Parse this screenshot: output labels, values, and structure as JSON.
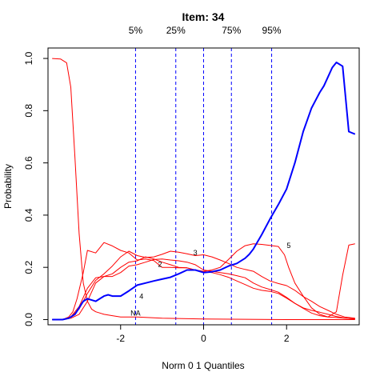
{
  "chart_data": {
    "type": "line",
    "title": "Item:  34",
    "xlabel": "Norm 0 1 Quantiles",
    "ylabel": "Probability",
    "xlim": [
      -3.75,
      3.75
    ],
    "ylim": [
      -0.02,
      1.04
    ],
    "x_ticks": [
      -2,
      0,
      2
    ],
    "x_tick_labels": [
      "-2",
      "0",
      "2"
    ],
    "y_ticks": [
      0.0,
      0.2,
      0.4,
      0.6,
      0.8,
      1.0
    ],
    "y_tick_labels": [
      "0.0",
      "0.2",
      "0.4",
      "0.6",
      "0.8",
      "1.0"
    ],
    "quantiles": [
      {
        "label": "5%",
        "x": -1.64
      },
      {
        "label": "25%",
        "x": -0.67
      },
      {
        "label": "75%",
        "x": 0.67
      },
      {
        "label": "95%",
        "x": 1.64
      }
    ],
    "colors": {
      "option_curves": "#ff0000",
      "key_curve": "#0000ff",
      "quantile_lines": "#0000ff"
    },
    "series": [
      {
        "label": "NA",
        "color": "#ff0000",
        "key": false,
        "label_at": {
          "x": -1.64,
          "y": 0.025
        },
        "x": [
          -3.65,
          -3.45,
          -3.3,
          -3.2,
          -3.1,
          -3.0,
          -2.9,
          -2.8,
          -2.7,
          -2.6,
          -2.4,
          -2.2,
          -2.0,
          -1.6,
          -1.0,
          0.0,
          1.0,
          2.0,
          3.0,
          3.65
        ],
        "y": [
          1.0,
          0.998,
          0.983,
          0.89,
          0.62,
          0.33,
          0.14,
          0.07,
          0.04,
          0.03,
          0.02,
          0.015,
          0.01,
          0.01,
          0.005,
          0.002,
          0.001,
          0.0,
          0.0,
          0.0
        ]
      },
      {
        "label": "2",
        "color": "#ff0000",
        "key": false,
        "label_at": {
          "x": -1.05,
          "y": 0.212
        },
        "x": [
          -3.65,
          -3.4,
          -3.25,
          -3.15,
          -3.05,
          -2.9,
          -2.8,
          -2.6,
          -2.4,
          -2.2,
          -2.0,
          -1.8,
          -1.6,
          -1.4,
          -1.2,
          -1.0,
          -0.8,
          -0.6,
          -0.4,
          -0.2,
          0.0,
          0.2,
          0.4,
          0.6,
          0.8,
          1.0,
          1.2,
          1.4,
          1.6,
          1.8,
          2.0,
          2.2,
          2.4,
          2.6,
          2.8,
          3.0,
          3.2,
          3.4,
          3.65
        ],
        "y": [
          0.0,
          0.0,
          0.01,
          0.03,
          0.08,
          0.18,
          0.265,
          0.255,
          0.295,
          0.282,
          0.265,
          0.255,
          0.228,
          0.232,
          0.226,
          0.2,
          0.2,
          0.198,
          0.198,
          0.19,
          0.184,
          0.18,
          0.172,
          0.162,
          0.148,
          0.134,
          0.12,
          0.112,
          0.108,
          0.1,
          0.082,
          0.062,
          0.043,
          0.025,
          0.015,
          0.01,
          0.008,
          0.005,
          0.003
        ]
      },
      {
        "label": "3",
        "color": "#ff0000",
        "key": false,
        "label_at": {
          "x": -0.2,
          "y": 0.255
        },
        "x": [
          -3.65,
          -3.4,
          -3.2,
          -3.0,
          -2.8,
          -2.6,
          -2.4,
          -2.2,
          -2.0,
          -1.8,
          -1.6,
          -1.4,
          -1.2,
          -1.0,
          -0.8,
          -0.6,
          -0.4,
          -0.2,
          0.0,
          0.2,
          0.4,
          0.6,
          0.8,
          1.0,
          1.2,
          1.4,
          1.6,
          1.8,
          2.0,
          2.2,
          2.4,
          2.6,
          2.8,
          3.0,
          3.2,
          3.4,
          3.65
        ],
        "y": [
          0.0,
          0.0,
          0.01,
          0.04,
          0.1,
          0.15,
          0.175,
          0.205,
          0.24,
          0.262,
          0.245,
          0.238,
          0.24,
          0.25,
          0.262,
          0.258,
          0.252,
          0.245,
          0.248,
          0.24,
          0.228,
          0.215,
          0.2,
          0.192,
          0.185,
          0.165,
          0.148,
          0.138,
          0.13,
          0.112,
          0.088,
          0.07,
          0.05,
          0.035,
          0.02,
          0.01,
          0.005
        ]
      },
      {
        "label": "4",
        "color": "#ff0000",
        "key": false,
        "label_at": {
          "x": -1.5,
          "y": 0.088
        },
        "x": [
          -3.65,
          -3.4,
          -3.2,
          -3.0,
          -2.8,
          -2.6,
          -2.4,
          -2.2,
          -2.0,
          -1.8,
          -1.6,
          -1.4,
          -1.2,
          -1.0,
          -0.8,
          -0.6,
          -0.4,
          -0.2,
          0.0,
          0.2,
          0.4,
          0.6,
          0.8,
          1.0,
          1.2,
          1.4,
          1.6,
          1.8,
          2.0,
          2.2,
          2.4,
          2.6,
          2.8,
          3.0,
          3.2,
          3.4,
          3.65
        ],
        "y": [
          0.0,
          0.0,
          0.01,
          0.05,
          0.12,
          0.16,
          0.165,
          0.165,
          0.18,
          0.205,
          0.21,
          0.22,
          0.23,
          0.232,
          0.228,
          0.225,
          0.22,
          0.21,
          0.19,
          0.185,
          0.18,
          0.175,
          0.168,
          0.16,
          0.14,
          0.125,
          0.115,
          0.105,
          0.085,
          0.062,
          0.045,
          0.035,
          0.028,
          0.02,
          0.012,
          0.006,
          0.002
        ]
      },
      {
        "label": "5",
        "color": "#ff0000",
        "key": false,
        "label_at": {
          "x": 2.05,
          "y": 0.283
        },
        "x": [
          -3.65,
          -3.4,
          -3.2,
          -3.0,
          -2.8,
          -2.6,
          -2.4,
          -2.2,
          -2.0,
          -1.8,
          -1.6,
          -1.4,
          -1.2,
          -1.0,
          -0.8,
          -0.6,
          -0.4,
          -0.2,
          0.0,
          0.2,
          0.4,
          0.6,
          0.8,
          1.0,
          1.2,
          1.4,
          1.6,
          1.8,
          1.95,
          2.05,
          2.2,
          2.4,
          2.6,
          2.8,
          3.0,
          3.2,
          3.35,
          3.5,
          3.65
        ],
        "y": [
          0.0,
          0.0,
          0.005,
          0.02,
          0.07,
          0.14,
          0.165,
          0.175,
          0.2,
          0.22,
          0.225,
          0.24,
          0.232,
          0.22,
          0.21,
          0.2,
          0.198,
          0.19,
          0.185,
          0.19,
          0.2,
          0.23,
          0.262,
          0.283,
          0.29,
          0.288,
          0.284,
          0.28,
          0.248,
          0.2,
          0.14,
          0.09,
          0.045,
          0.02,
          0.01,
          0.03,
          0.17,
          0.285,
          0.29
        ]
      },
      {
        "label": "",
        "color": "#0000ff",
        "key": true,
        "x": [
          -3.65,
          -3.4,
          -3.25,
          -3.1,
          -3.0,
          -2.9,
          -2.8,
          -2.6,
          -2.5,
          -2.4,
          -2.3,
          -2.2,
          -2.0,
          -1.8,
          -1.6,
          -1.4,
          -1.2,
          -1.0,
          -0.8,
          -0.6,
          -0.4,
          -0.2,
          0.0,
          0.2,
          0.4,
          0.6,
          0.8,
          1.0,
          1.1,
          1.2,
          1.4,
          1.6,
          1.8,
          2.0,
          2.2,
          2.4,
          2.6,
          2.8,
          2.9,
          3.0,
          3.1,
          3.2,
          3.35,
          3.5,
          3.65
        ],
        "y": [
          0.0,
          0.0,
          0.005,
          0.02,
          0.045,
          0.07,
          0.08,
          0.07,
          0.08,
          0.09,
          0.095,
          0.09,
          0.09,
          0.11,
          0.132,
          0.14,
          0.148,
          0.155,
          0.162,
          0.175,
          0.19,
          0.19,
          0.18,
          0.183,
          0.19,
          0.205,
          0.215,
          0.235,
          0.25,
          0.27,
          0.325,
          0.385,
          0.44,
          0.5,
          0.6,
          0.72,
          0.81,
          0.87,
          0.895,
          0.93,
          0.965,
          0.985,
          0.97,
          0.72,
          0.71
        ]
      }
    ]
  }
}
